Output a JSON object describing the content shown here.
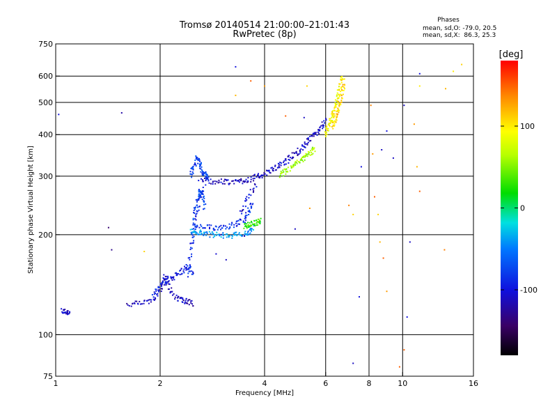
{
  "chart_data": {
    "type": "scatter",
    "title": "Tromsø 20140514 21:00:00–21:01:43",
    "subtitle": "RwPretec (8p)",
    "stats": {
      "heading": "Phases",
      "line_o": "mean, sd,O: -79.0, 20.5",
      "line_x": "mean, sd,X:  86.3, 25.3"
    },
    "xlabel": "Frequency [MHz]",
    "ylabel": "Stationary phase Virtual Height [km]",
    "x_scale": "log",
    "y_scale": "log",
    "xlim": [
      1,
      16
    ],
    "ylim": [
      75,
      750
    ],
    "x_ticks": [
      1,
      2,
      4,
      6,
      8,
      10,
      16
    ],
    "y_ticks": [
      75,
      100,
      200,
      300,
      400,
      500,
      600,
      750
    ],
    "x_grid": [
      2,
      4,
      6,
      8,
      10
    ],
    "y_grid": [
      100,
      200,
      300,
      400,
      500,
      600
    ],
    "grid": true,
    "colorbar": {
      "label": "[deg]",
      "ticks": [
        -100,
        0,
        100
      ],
      "range": [
        -180,
        180
      ]
    },
    "traces": [
      {
        "f": [
          1.04,
          1.07,
          1.1
        ],
        "h": [
          118,
          117,
          117
        ],
        "phase": -110
      },
      {
        "f": [
          1.6,
          1.75,
          1.9,
          2.0,
          2.05,
          2.1,
          2.2,
          2.3,
          2.4,
          2.5
        ],
        "h": [
          123,
          124,
          127,
          135,
          150,
          142,
          130,
          128,
          126,
          124
        ],
        "phase": -112
      },
      {
        "f": [
          1.9,
          2.0,
          2.1,
          2.2,
          2.3,
          2.4,
          2.5
        ],
        "h": [
          132,
          140,
          146,
          150,
          155,
          160,
          150
        ],
        "phase": -95
      },
      {
        "f": [
          2.4,
          2.45,
          2.5,
          2.55,
          2.6,
          2.7
        ],
        "h": [
          150,
          180,
          200,
          230,
          260,
          280
        ],
        "phase": -90
      },
      {
        "f": [
          2.45,
          2.55,
          2.65,
          2.8,
          3.0,
          3.2,
          3.4,
          3.6,
          3.7
        ],
        "h": [
          205,
          203,
          202,
          200,
          199,
          199,
          200,
          202,
          210
        ],
        "phase": -40
      },
      {
        "f": [
          2.5,
          2.7,
          2.9,
          3.1,
          3.3,
          3.5,
          3.6,
          3.7
        ],
        "h": [
          212,
          210,
          210,
          212,
          215,
          222,
          235,
          250
        ],
        "phase": -85
      },
      {
        "f": [
          2.5,
          2.55,
          2.6,
          2.65,
          2.7
        ],
        "h": [
          220,
          250,
          270,
          260,
          240
        ],
        "phase": -75
      },
      {
        "f": [
          3.5,
          3.6,
          3.7,
          3.8,
          3.9
        ],
        "h": [
          212,
          214,
          216,
          218,
          220
        ],
        "phase": 30
      },
      {
        "f": [
          2.45,
          2.5,
          2.55,
          2.6,
          2.65,
          2.7,
          2.75
        ],
        "h": [
          300,
          320,
          340,
          330,
          310,
          300,
          297
        ],
        "phase": -75
      },
      {
        "f": [
          2.6,
          2.8,
          3.0,
          3.2,
          3.4,
          3.6,
          3.8,
          4.0,
          4.2,
          4.4,
          4.6,
          4.8,
          5.0,
          5.2,
          5.4,
          5.6,
          5.8,
          6.0
        ],
        "h": [
          293,
          290,
          288,
          288,
          290,
          293,
          298,
          305,
          313,
          322,
          332,
          344,
          356,
          370,
          385,
          402,
          420,
          440
        ],
        "phase": -110
      },
      {
        "f": [
          4.4,
          4.6,
          4.8,
          5.0,
          5.2,
          5.4,
          5.6
        ],
        "h": [
          300,
          310,
          320,
          330,
          340,
          352,
          365
        ],
        "phase": 60
      },
      {
        "f": [
          6.0,
          6.1,
          6.2,
          6.3,
          6.4,
          6.5,
          6.6,
          6.7
        ],
        "h": [
          400,
          420,
          440,
          460,
          490,
          520,
          560,
          600
        ],
        "phase": 95
      },
      {
        "f": [
          6.3,
          6.4,
          6.5,
          6.6,
          6.7,
          6.8
        ],
        "h": [
          420,
          445,
          470,
          500,
          540,
          580
        ],
        "phase": 110
      },
      {
        "f": [
          3.4,
          3.6,
          3.8
        ],
        "h": [
          232,
          260,
          285
        ],
        "phase": -105
      }
    ],
    "scatter": [
      {
        "f": 1.02,
        "h": 460,
        "phase": -100
      },
      {
        "f": 1.55,
        "h": 465,
        "phase": -120
      },
      {
        "f": 1.42,
        "h": 210,
        "phase": -140
      },
      {
        "f": 1.45,
        "h": 180,
        "phase": -130
      },
      {
        "f": 1.8,
        "h": 178,
        "phase": 110
      },
      {
        "f": 3.3,
        "h": 640,
        "phase": -100
      },
      {
        "f": 3.3,
        "h": 525,
        "phase": 120
      },
      {
        "f": 3.65,
        "h": 580,
        "phase": 150
      },
      {
        "f": 4.0,
        "h": 560,
        "phase": 130
      },
      {
        "f": 4.6,
        "h": 455,
        "phase": 150
      },
      {
        "f": 5.3,
        "h": 560,
        "phase": 110
      },
      {
        "f": 5.2,
        "h": 450,
        "phase": -110
      },
      {
        "f": 7.0,
        "h": 245,
        "phase": 140
      },
      {
        "f": 7.2,
        "h": 230,
        "phase": 110
      },
      {
        "f": 7.6,
        "h": 320,
        "phase": -100
      },
      {
        "f": 7.5,
        "h": 130,
        "phase": -100
      },
      {
        "f": 7.2,
        "h": 82,
        "phase": -110
      },
      {
        "f": 8.1,
        "h": 490,
        "phase": 140
      },
      {
        "f": 8.2,
        "h": 350,
        "phase": 130
      },
      {
        "f": 8.3,
        "h": 260,
        "phase": 150
      },
      {
        "f": 8.5,
        "h": 230,
        "phase": 110
      },
      {
        "f": 8.6,
        "h": 190,
        "phase": 120
      },
      {
        "f": 8.8,
        "h": 170,
        "phase": 150
      },
      {
        "f": 8.7,
        "h": 360,
        "phase": -110
      },
      {
        "f": 9.0,
        "h": 410,
        "phase": -100
      },
      {
        "f": 9.0,
        "h": 135,
        "phase": 130
      },
      {
        "f": 9.4,
        "h": 340,
        "phase": -110
      },
      {
        "f": 9.8,
        "h": 80,
        "phase": 150
      },
      {
        "f": 10.1,
        "h": 90,
        "phase": 150
      },
      {
        "f": 10.3,
        "h": 113,
        "phase": -100
      },
      {
        "f": 10.5,
        "h": 190,
        "phase": -110
      },
      {
        "f": 10.1,
        "h": 490,
        "phase": -110
      },
      {
        "f": 10.8,
        "h": 430,
        "phase": 130
      },
      {
        "f": 11.0,
        "h": 320,
        "phase": 120
      },
      {
        "f": 11.2,
        "h": 270,
        "phase": 150
      },
      {
        "f": 11.2,
        "h": 610,
        "phase": -100
      },
      {
        "f": 11.2,
        "h": 560,
        "phase": 100
      },
      {
        "f": 13.2,
        "h": 180,
        "phase": 140
      },
      {
        "f": 13.3,
        "h": 550,
        "phase": 120
      },
      {
        "f": 14.0,
        "h": 620,
        "phase": 100
      },
      {
        "f": 14.8,
        "h": 650,
        "phase": 110
      },
      {
        "f": 3.0,
        "h": 200,
        "phase": -120
      },
      {
        "f": 3.5,
        "h": 198,
        "phase": -120
      },
      {
        "f": 4.9,
        "h": 208,
        "phase": -110
      },
      {
        "f": 5.4,
        "h": 240,
        "phase": 130
      },
      {
        "f": 2.9,
        "h": 175,
        "phase": -105
      },
      {
        "f": 3.1,
        "h": 168,
        "phase": -110
      }
    ]
  }
}
